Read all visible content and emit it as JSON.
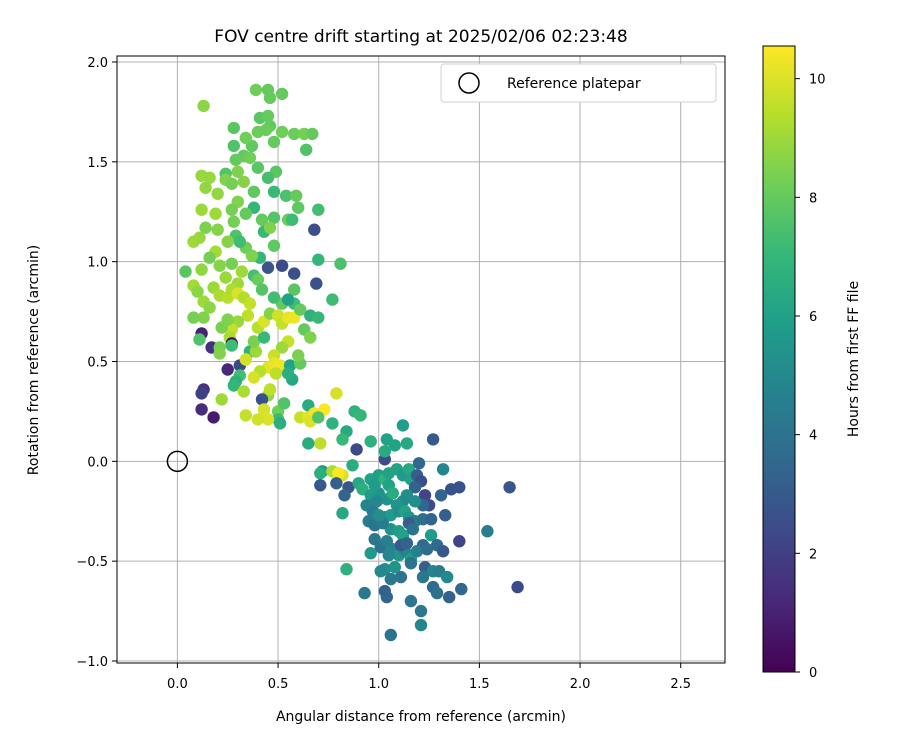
{
  "chart_data": {
    "type": "scatter",
    "title": "FOV centre drift starting at 2025/02/06 02:23:48",
    "xlabel": "Angular distance from reference (arcmin)",
    "ylabel": "Rotation from reference (arcmin)",
    "xlim": [
      -0.3,
      2.72
    ],
    "ylim": [
      -1.01,
      2.03
    ],
    "grid": true,
    "x_ticks": [
      0.0,
      0.5,
      1.0,
      1.5,
      2.0,
      2.5
    ],
    "x_tick_labels": [
      "0.0",
      "0.5",
      "1.0",
      "1.5",
      "2.0",
      "2.5"
    ],
    "y_ticks": [
      -1.0,
      -0.5,
      0.0,
      0.5,
      1.0,
      1.5,
      2.0
    ],
    "y_tick_labels": [
      "−1.0",
      "−0.5",
      "0.0",
      "0.5",
      "1.0",
      "1.5",
      "2.0"
    ],
    "legend": {
      "placement": "top-right",
      "label": "Reference platepar"
    },
    "reference_point": {
      "x": 0.0,
      "y": 0.0
    },
    "colorbar": {
      "label": "Hours from first FF file",
      "colormap": "viridis",
      "range": [
        0,
        10.55
      ],
      "ticks": [
        0,
        2,
        4,
        6,
        8,
        10
      ],
      "tick_labels": [
        "0",
        "2",
        "4",
        "6",
        "8",
        "10"
      ]
    },
    "viridis_stops": [
      "#440154",
      "#482878",
      "#3e4989",
      "#31688e",
      "#26828e",
      "#1f9e89",
      "#35b779",
      "#6ece58",
      "#b5de2b",
      "#fde725"
    ],
    "points": [
      [
        0.13,
        1.78,
        8.7
      ],
      [
        0.39,
        1.86,
        8.2
      ],
      [
        0.45,
        1.86,
        8.0
      ],
      [
        0.52,
        1.84,
        8.0
      ],
      [
        0.46,
        1.82,
        8.0
      ],
      [
        0.41,
        1.72,
        7.8
      ],
      [
        0.45,
        1.73,
        8.0
      ],
      [
        0.46,
        1.68,
        8.0
      ],
      [
        0.44,
        1.66,
        8.1
      ],
      [
        0.4,
        1.65,
        8.1
      ],
      [
        0.28,
        1.67,
        7.8
      ],
      [
        0.52,
        1.65,
        8.2
      ],
      [
        0.58,
        1.64,
        8.1
      ],
      [
        0.63,
        1.64,
        8.3
      ],
      [
        0.67,
        1.64,
        8.0
      ],
      [
        0.28,
        1.58,
        7.6
      ],
      [
        0.37,
        1.58,
        7.9
      ],
      [
        0.34,
        1.62,
        8.2
      ],
      [
        0.48,
        1.6,
        8.0
      ],
      [
        0.64,
        1.56,
        7.6
      ],
      [
        0.33,
        1.53,
        8.0
      ],
      [
        0.29,
        1.51,
        8.0
      ],
      [
        0.36,
        1.52,
        8.2
      ],
      [
        0.4,
        1.47,
        7.8
      ],
      [
        0.3,
        1.45,
        8.5
      ],
      [
        0.24,
        1.44,
        7.6
      ],
      [
        0.24,
        1.41,
        8.5
      ],
      [
        0.12,
        1.43,
        8.9
      ],
      [
        0.16,
        1.42,
        8.9
      ],
      [
        0.14,
        1.37,
        8.8
      ],
      [
        0.2,
        1.34,
        8.8
      ],
      [
        0.27,
        1.39,
        8.3
      ],
      [
        0.33,
        1.4,
        8.6
      ],
      [
        0.38,
        1.35,
        7.9
      ],
      [
        0.49,
        1.45,
        7.8
      ],
      [
        0.45,
        1.42,
        7.4
      ],
      [
        0.48,
        1.35,
        7.1
      ],
      [
        0.54,
        1.33,
        7.5
      ],
      [
        0.59,
        1.33,
        8.0
      ],
      [
        0.6,
        1.27,
        7.9
      ],
      [
        0.7,
        1.26,
        7.3
      ],
      [
        0.38,
        1.27,
        7.0
      ],
      [
        0.42,
        1.21,
        8.0
      ],
      [
        0.48,
        1.22,
        7.7
      ],
      [
        0.55,
        1.21,
        8.1
      ],
      [
        0.3,
        1.3,
        8.5
      ],
      [
        0.27,
        1.26,
        8.3
      ],
      [
        0.12,
        1.26,
        9.0
      ],
      [
        0.19,
        1.24,
        9.0
      ],
      [
        0.14,
        1.17,
        8.4
      ],
      [
        0.2,
        1.16,
        8.6
      ],
      [
        0.28,
        1.2,
        8.3
      ],
      [
        0.34,
        1.24,
        8.0
      ],
      [
        0.29,
        1.13,
        7.6
      ],
      [
        0.43,
        1.15,
        7.1
      ],
      [
        0.46,
        1.17,
        8.5
      ],
      [
        0.57,
        1.21,
        7.2
      ],
      [
        0.68,
        1.16,
        2.6
      ],
      [
        0.48,
        1.08,
        7.9
      ],
      [
        0.41,
        1.02,
        7.0
      ],
      [
        0.37,
        1.03,
        8.5
      ],
      [
        0.34,
        1.07,
        8.2
      ],
      [
        0.31,
        1.1,
        7.3
      ],
      [
        0.25,
        1.1,
        8.6
      ],
      [
        0.19,
        1.05,
        9.1
      ],
      [
        0.08,
        1.1,
        9.0
      ],
      [
        0.11,
        1.12,
        8.9
      ],
      [
        0.16,
        1.02,
        8.3
      ],
      [
        0.21,
        0.98,
        8.6
      ],
      [
        0.27,
        0.99,
        8.3
      ],
      [
        0.24,
        0.92,
        8.9
      ],
      [
        0.3,
        0.89,
        9.0
      ],
      [
        0.32,
        0.95,
        9.0
      ],
      [
        0.38,
        0.93,
        7.4
      ],
      [
        0.4,
        0.91,
        8.1
      ],
      [
        0.42,
        0.86,
        7.7
      ],
      [
        0.45,
        0.97,
        2.8
      ],
      [
        0.52,
        0.98,
        2.4
      ],
      [
        0.58,
        0.94,
        2.6
      ],
      [
        0.58,
        0.86,
        7.8
      ],
      [
        0.7,
        1.01,
        7.0
      ],
      [
        0.69,
        0.89,
        2.7
      ],
      [
        0.77,
        0.81,
        7.2
      ],
      [
        0.81,
        0.99,
        7.5
      ],
      [
        0.04,
        0.95,
        7.8
      ],
      [
        0.12,
        0.96,
        8.8
      ],
      [
        0.18,
        0.87,
        9.0
      ],
      [
        0.21,
        0.83,
        9.2
      ],
      [
        0.08,
        0.88,
        9.1
      ],
      [
        0.1,
        0.85,
        8.7
      ],
      [
        0.13,
        0.8,
        9.0
      ],
      [
        0.16,
        0.77,
        8.7
      ],
      [
        0.25,
        0.82,
        9.4
      ],
      [
        0.27,
        0.86,
        9.2
      ],
      [
        0.3,
        0.84,
        10.0
      ],
      [
        0.33,
        0.82,
        9.3
      ],
      [
        0.36,
        0.79,
        9.6
      ],
      [
        0.35,
        0.73,
        9.5
      ],
      [
        0.3,
        0.7,
        8.9
      ],
      [
        0.27,
        0.66,
        9.6
      ],
      [
        0.26,
        0.62,
        9.2
      ],
      [
        0.25,
        0.71,
        8.5
      ],
      [
        0.22,
        0.67,
        8.4
      ],
      [
        0.13,
        0.72,
        8.5
      ],
      [
        0.08,
        0.72,
        8.3
      ],
      [
        0.12,
        0.64,
        1.0
      ],
      [
        0.11,
        0.61,
        7.6
      ],
      [
        0.17,
        0.57,
        1.5
      ],
      [
        0.21,
        0.57,
        8.3
      ],
      [
        0.21,
        0.54,
        8.5
      ],
      [
        0.27,
        0.59,
        0.2
      ],
      [
        0.27,
        0.58,
        7.2
      ],
      [
        0.25,
        0.46,
        1.2
      ],
      [
        0.31,
        0.48,
        2.4
      ],
      [
        0.36,
        0.55,
        6.8
      ],
      [
        0.39,
        0.55,
        9.0
      ],
      [
        0.38,
        0.6,
        8.4
      ],
      [
        0.43,
        0.62,
        7.1
      ],
      [
        0.4,
        0.67,
        9.4
      ],
      [
        0.43,
        0.7,
        10.0
      ],
      [
        0.46,
        0.74,
        8.6
      ],
      [
        0.5,
        0.73,
        9.8
      ],
      [
        0.52,
        0.69,
        9.6
      ],
      [
        0.55,
        0.72,
        10.2
      ],
      [
        0.58,
        0.72,
        10.3
      ],
      [
        0.58,
        0.79,
        7.2
      ],
      [
        0.52,
        0.79,
        8.0
      ],
      [
        0.48,
        0.82,
        7.3
      ],
      [
        0.61,
        0.76,
        8.0
      ],
      [
        0.55,
        0.81,
        6.0
      ],
      [
        0.66,
        0.73,
        6.7
      ],
      [
        0.7,
        0.72,
        7.1
      ],
      [
        0.63,
        0.66,
        8.0
      ],
      [
        0.66,
        0.62,
        8.5
      ],
      [
        0.55,
        0.6,
        9.7
      ],
      [
        0.52,
        0.57,
        9.0
      ],
      [
        0.48,
        0.53,
        9.7
      ],
      [
        0.45,
        0.47,
        10.1
      ],
      [
        0.48,
        0.49,
        10.2
      ],
      [
        0.51,
        0.48,
        10.3
      ],
      [
        0.49,
        0.44,
        9.5
      ],
      [
        0.41,
        0.45,
        9.4
      ],
      [
        0.38,
        0.42,
        9.9
      ],
      [
        0.34,
        0.51,
        9.8
      ],
      [
        0.31,
        0.43,
        7.3
      ],
      [
        0.29,
        0.4,
        6.6
      ],
      [
        0.28,
        0.38,
        7.0
      ],
      [
        0.22,
        0.31,
        9.0
      ],
      [
        0.13,
        0.36,
        1.6
      ],
      [
        0.12,
        0.34,
        2.0
      ],
      [
        0.12,
        0.26,
        1.3
      ],
      [
        0.18,
        0.22,
        0.8
      ],
      [
        0.33,
        0.35,
        9.2
      ],
      [
        0.45,
        0.33,
        8.8
      ],
      [
        0.46,
        0.36,
        9.5
      ],
      [
        0.42,
        0.31,
        2.6
      ],
      [
        0.43,
        0.26,
        9.9
      ],
      [
        0.5,
        0.25,
        8.2
      ],
      [
        0.5,
        0.21,
        7.2
      ],
      [
        0.51,
        0.19,
        6.6
      ],
      [
        0.45,
        0.21,
        10.0
      ],
      [
        0.4,
        0.21,
        9.8
      ],
      [
        0.34,
        0.23,
        9.6
      ],
      [
        0.53,
        0.29,
        7.6
      ],
      [
        0.56,
        0.48,
        6.1
      ],
      [
        0.61,
        0.49,
        8.0
      ],
      [
        0.6,
        0.53,
        8.4
      ],
      [
        0.57,
        0.41,
        6.3
      ],
      [
        0.55,
        0.44,
        6.6
      ],
      [
        0.65,
        0.28,
        6.5
      ],
      [
        0.61,
        0.22,
        9.7
      ],
      [
        0.65,
        0.22,
        10.1
      ],
      [
        0.68,
        0.24,
        10.4
      ],
      [
        0.73,
        0.26,
        10.5
      ],
      [
        0.66,
        0.2,
        10.0
      ],
      [
        0.7,
        0.22,
        7.6
      ],
      [
        0.79,
        0.34,
        9.9
      ],
      [
        0.71,
        0.09,
        9.5
      ],
      [
        0.65,
        0.09,
        6.5
      ],
      [
        0.77,
        0.19,
        6.8
      ],
      [
        0.84,
        0.15,
        6.4
      ],
      [
        0.82,
        0.11,
        7.1
      ],
      [
        0.88,
        0.25,
        6.8
      ],
      [
        0.91,
        0.23,
        7.0
      ],
      [
        0.89,
        0.06,
        2.4
      ],
      [
        0.96,
        0.1,
        6.7
      ],
      [
        1.04,
        0.11,
        6.0
      ],
      [
        1.12,
        0.18,
        5.9
      ],
      [
        1.14,
        0.09,
        6.3
      ],
      [
        1.08,
        0.08,
        6.1
      ],
      [
        1.03,
        0.01,
        2.5
      ],
      [
        1.03,
        0.05,
        6.4
      ],
      [
        1.27,
        0.11,
        3.0
      ],
      [
        0.87,
        -0.02,
        6.5
      ],
      [
        0.72,
        -0.05,
        5.7
      ],
      [
        0.71,
        -0.06,
        6.6
      ],
      [
        0.77,
        -0.05,
        9.2
      ],
      [
        0.82,
        -0.07,
        9.9
      ],
      [
        0.8,
        -0.06,
        10.5
      ],
      [
        0.71,
        -0.12,
        2.9
      ],
      [
        0.79,
        -0.11,
        3.2
      ],
      [
        0.85,
        -0.13,
        2.8
      ],
      [
        0.83,
        -0.17,
        3.4
      ],
      [
        0.9,
        -0.11,
        6.3
      ],
      [
        0.92,
        -0.14,
        6.6
      ],
      [
        0.96,
        -0.09,
        6.0
      ],
      [
        1.0,
        -0.07,
        5.9
      ],
      [
        1.03,
        -0.09,
        6.8
      ],
      [
        1.05,
        -0.06,
        6.0
      ],
      [
        1.09,
        -0.04,
        6.1
      ],
      [
        1.12,
        -0.07,
        5.7
      ],
      [
        1.15,
        -0.04,
        6.4
      ],
      [
        1.2,
        -0.01,
        3.5
      ],
      [
        1.16,
        -0.09,
        6.0
      ],
      [
        1.19,
        -0.07,
        3.2
      ],
      [
        1.21,
        -0.1,
        2.5
      ],
      [
        1.18,
        -0.13,
        3.3
      ],
      [
        1.32,
        -0.04,
        4.8
      ],
      [
        1.36,
        -0.14,
        2.7
      ],
      [
        1.4,
        -0.13,
        2.7
      ],
      [
        1.31,
        -0.17,
        3.4
      ],
      [
        1.23,
        -0.17,
        2.2
      ],
      [
        1.25,
        -0.22,
        2.4
      ],
      [
        1.22,
        -0.22,
        3.5
      ],
      [
        1.18,
        -0.2,
        5.2
      ],
      [
        1.14,
        -0.17,
        5.2
      ],
      [
        1.12,
        -0.2,
        5.1
      ],
      [
        1.09,
        -0.22,
        5.5
      ],
      [
        1.04,
        -0.19,
        5.4
      ],
      [
        1.0,
        -0.16,
        5.4
      ],
      [
        0.96,
        -0.17,
        5.8
      ],
      [
        0.94,
        -0.22,
        4.9
      ],
      [
        0.97,
        -0.25,
        4.5
      ],
      [
        0.99,
        -0.2,
        4.9
      ],
      [
        0.98,
        -0.12,
        5.8
      ],
      [
        1.05,
        -0.12,
        6.1
      ],
      [
        0.82,
        -0.26,
        6.3
      ],
      [
        1.03,
        -0.28,
        4.7
      ],
      [
        1.06,
        -0.27,
        5.7
      ],
      [
        1.1,
        -0.25,
        5.2
      ],
      [
        1.13,
        -0.25,
        6.1
      ],
      [
        1.15,
        -0.28,
        5.5
      ],
      [
        1.18,
        -0.3,
        4.4
      ],
      [
        1.22,
        -0.29,
        3.9
      ],
      [
        1.26,
        -0.29,
        3.4
      ],
      [
        1.33,
        -0.27,
        3.2
      ],
      [
        1.54,
        -0.35,
        4.5
      ],
      [
        1.65,
        -0.13,
        2.8
      ],
      [
        1.69,
        -0.63,
        2.4
      ],
      [
        0.95,
        -0.3,
        4.4
      ],
      [
        0.98,
        -0.32,
        4.0
      ],
      [
        1.06,
        -0.34,
        5.3
      ],
      [
        1.1,
        -0.35,
        5.9
      ],
      [
        1.12,
        -0.37,
        6.0
      ],
      [
        1.15,
        -0.31,
        3.1
      ],
      [
        1.17,
        -0.34,
        4.0
      ],
      [
        1.22,
        -0.42,
        3.5
      ],
      [
        1.26,
        -0.37,
        5.8
      ],
      [
        1.29,
        -0.42,
        3.6
      ],
      [
        1.32,
        -0.45,
        2.9
      ],
      [
        1.4,
        -0.4,
        2.2
      ],
      [
        0.98,
        -0.39,
        4.2
      ],
      [
        1.01,
        -0.43,
        4.0
      ],
      [
        1.04,
        -0.4,
        4.6
      ],
      [
        1.07,
        -0.44,
        4.8
      ],
      [
        1.1,
        -0.47,
        5.5
      ],
      [
        1.13,
        -0.45,
        4.8
      ],
      [
        1.16,
        -0.49,
        5.8
      ],
      [
        1.19,
        -0.45,
        4.6
      ],
      [
        1.24,
        -0.44,
        3.8
      ],
      [
        0.96,
        -0.46,
        5.7
      ],
      [
        1.05,
        -0.47,
        4.9
      ],
      [
        1.03,
        -0.54,
        5.2
      ],
      [
        1.08,
        -0.53,
        5.4
      ],
      [
        1.11,
        -0.58,
        4.1
      ],
      [
        1.16,
        -0.51,
        4.0
      ],
      [
        1.23,
        -0.53,
        3.2
      ],
      [
        1.27,
        -0.55,
        4.8
      ],
      [
        1.3,
        -0.55,
        4.4
      ],
      [
        1.34,
        -0.58,
        5.0
      ],
      [
        0.84,
        -0.54,
        6.7
      ],
      [
        1.06,
        -0.59,
        4.2
      ],
      [
        1.01,
        -0.55,
        5.0
      ],
      [
        1.22,
        -0.58,
        4.2
      ],
      [
        1.27,
        -0.63,
        3.6
      ],
      [
        1.29,
        -0.66,
        3.9
      ],
      [
        1.35,
        -0.68,
        3.3
      ],
      [
        1.41,
        -0.64,
        3.5
      ],
      [
        1.03,
        -0.65,
        3.3
      ],
      [
        1.04,
        -0.68,
        3.4
      ],
      [
        1.21,
        -0.75,
        4.2
      ],
      [
        1.16,
        -0.7,
        4.1
      ],
      [
        0.93,
        -0.66,
        4.2
      ],
      [
        1.21,
        -0.82,
        4.8
      ],
      [
        1.06,
        -0.87,
        4.0
      ],
      [
        1.11,
        -0.42,
        3.0
      ],
      [
        1.02,
        -0.31,
        4.4
      ],
      [
        1.07,
        -0.16,
        6.5
      ],
      [
        1.0,
        -0.27,
        5.2
      ],
      [
        1.14,
        -0.41,
        3.4
      ]
    ]
  }
}
